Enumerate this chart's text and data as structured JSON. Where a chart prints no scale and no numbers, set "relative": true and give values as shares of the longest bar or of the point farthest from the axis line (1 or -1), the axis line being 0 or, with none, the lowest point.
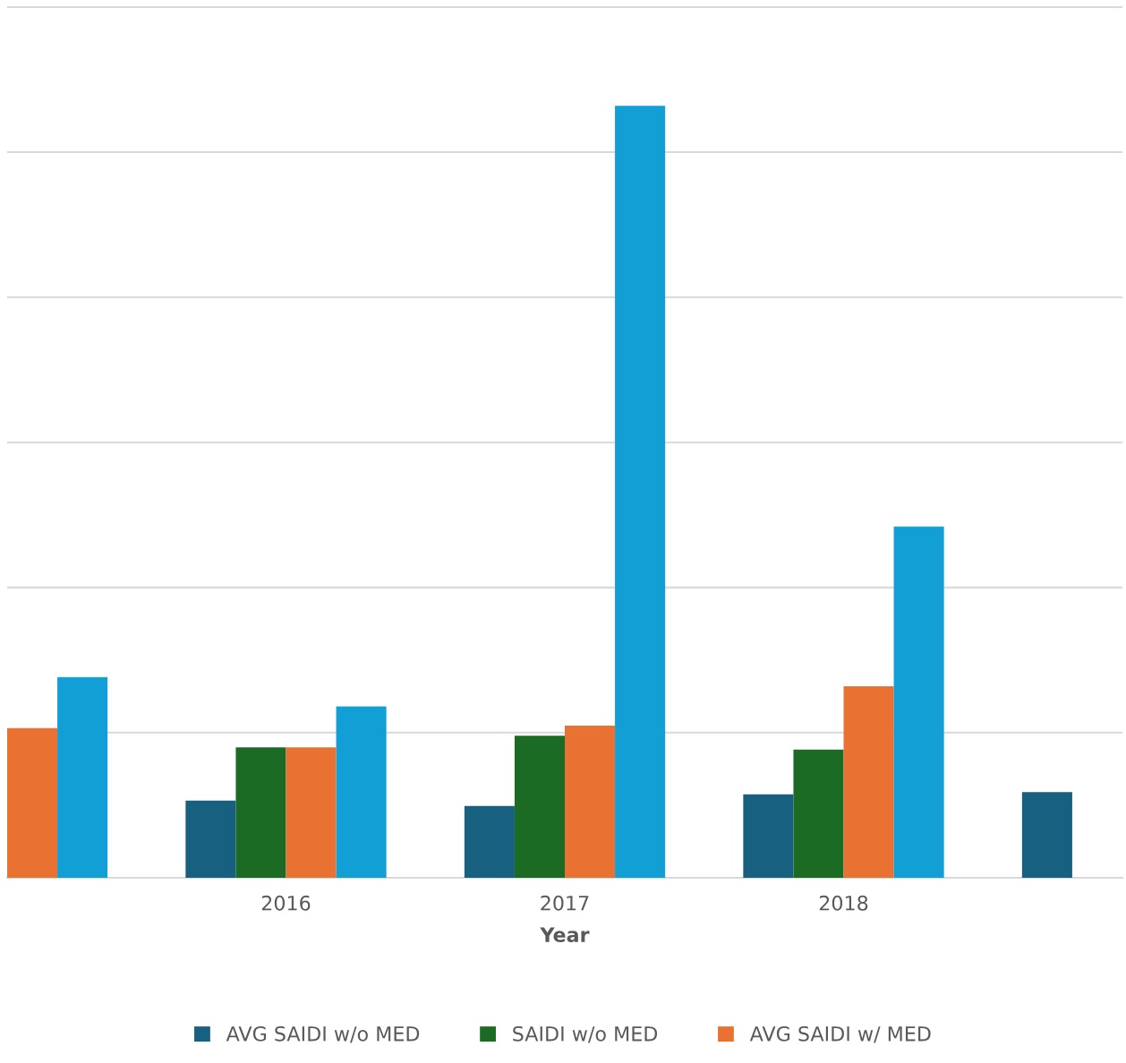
{
  "chart_data": {
    "type": "bar",
    "relative": true,
    "xlabel": "Year",
    "categories": [
      null,
      "2016",
      "2017",
      "2018",
      null
    ],
    "series": [
      {
        "name": "AVG SAIDI w/o MED",
        "color": "#17607f",
        "values": [
          null,
          0.1,
          0.093,
          0.108,
          0.111
        ]
      },
      {
        "name": "SAIDI w/o MED",
        "color": "#1c6b24",
        "values": [
          null,
          0.169,
          0.184,
          0.166,
          null
        ]
      },
      {
        "name": "AVG SAIDI w/ MED",
        "color": "#e97132",
        "values": [
          0.194,
          0.169,
          0.197,
          0.248,
          null
        ]
      },
      {
        "color": "#119fd6",
        "values": [
          0.26,
          0.222,
          1,
          0.455,
          null
        ]
      }
    ],
    "grid": "y",
    "legend": "bottom"
  }
}
